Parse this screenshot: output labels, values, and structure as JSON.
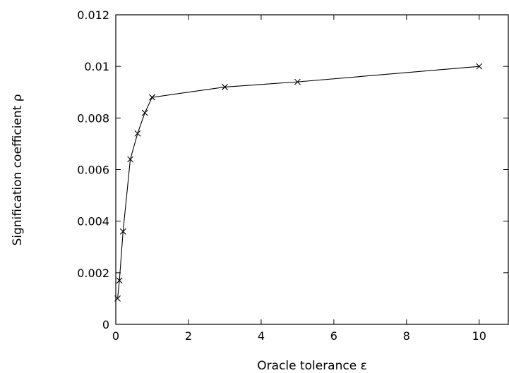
{
  "chart_data": {
    "type": "line",
    "title": "",
    "xlabel": "Oracle tolerance ε",
    "ylabel": "Signification coefficient ρ",
    "xlim": [
      0,
      10.8
    ],
    "ylim": [
      0,
      0.012
    ],
    "xticks": [
      0,
      2,
      4,
      6,
      8,
      10
    ],
    "xtick_labels": [
      "0",
      "2",
      "4",
      "6",
      "8",
      "10"
    ],
    "yticks": [
      0,
      0.002,
      0.004,
      0.006,
      0.008,
      0.01,
      0.012
    ],
    "ytick_labels": [
      "0",
      "0.002",
      "0.004",
      "0.006",
      "0.008",
      "0.01",
      "0.012"
    ],
    "grid": false,
    "legend": "none",
    "series": [
      {
        "marker": "x",
        "color": "#000000",
        "x": [
          0.05,
          0.1,
          0.2,
          0.4,
          0.6,
          0.8,
          1,
          3,
          5,
          10
        ],
        "y": [
          0.001,
          0.0017,
          0.0036,
          0.0064,
          0.0074,
          0.0082,
          0.0088,
          0.0092,
          0.0094,
          0.01
        ]
      }
    ]
  }
}
